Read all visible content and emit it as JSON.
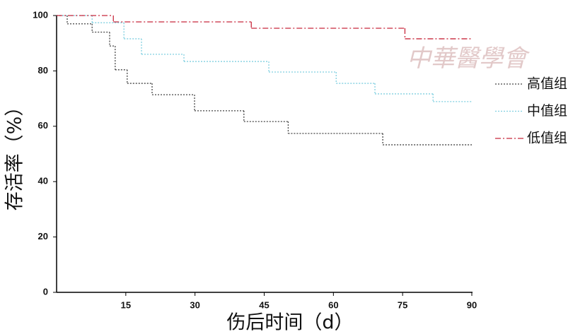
{
  "chart_data": {
    "type": "step",
    "watermark": "中華醫學會",
    "x_label": "伤后时间（d）",
    "y_label": "存活率（%）",
    "xlim": [
      0,
      90
    ],
    "xticks": [
      15,
      30,
      45,
      60,
      75,
      90
    ],
    "ylim": [
      0,
      100
    ],
    "yticks": [
      0,
      20,
      40,
      60,
      80,
      100
    ],
    "legend": "right",
    "series": [
      {
        "name": "高值组",
        "color": "#444444",
        "linestyle": "dotted",
        "x": [
          0,
          2.3,
          7.7,
          11.5,
          12.7,
          15.3,
          20.7,
          29.9,
          40.6,
          50.2,
          70.7
        ],
        "values": [
          100,
          97,
          94,
          89,
          80.4,
          75.5,
          71.4,
          65.6,
          61.7,
          57.4,
          53.3
        ]
      },
      {
        "name": "中值组",
        "color": "#7fcfe0",
        "linestyle": "dotted",
        "x": [
          0,
          7.7,
          14.6,
          18.4,
          27.6,
          46,
          60.6,
          69,
          81.6
        ],
        "values": [
          100,
          97.4,
          91.6,
          86,
          83.4,
          79.6,
          75.5,
          71.7,
          68.9
        ]
      },
      {
        "name": "低值组",
        "color": "#c8283c",
        "linestyle": "dashdot",
        "x": [
          0,
          12.3,
          42.2,
          75.5
        ],
        "values": [
          100,
          97.7,
          95.4,
          91.6
        ]
      }
    ]
  }
}
